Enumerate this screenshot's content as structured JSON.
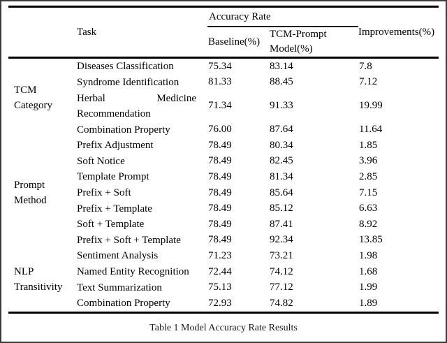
{
  "colors": {
    "background": "#ffffff",
    "text": "#000000",
    "rule": "#000000"
  },
  "table": {
    "header": {
      "task": "Task",
      "accuracy_group": "Accuracy Rate",
      "baseline": "Baseline(%)",
      "model_line1": "TCM-Prompt",
      "model_line2": "Model(%)",
      "improvements": "Improvements(%)"
    },
    "groups": [
      {
        "category_lines": [
          "TCM",
          "Category"
        ],
        "rows": [
          {
            "task": "Diseases Classification",
            "baseline": "75.34",
            "model": "83.14",
            "improvement": "7.8",
            "two_line": false
          },
          {
            "task": "Syndrome Identification",
            "baseline": "81.33",
            "model": "88.45",
            "improvement": "7.12",
            "two_line": false
          },
          {
            "task": "Herbal Medicine Recommendation",
            "baseline": "71.34",
            "model": "91.33",
            "improvement": "19.99",
            "two_line": true
          },
          {
            "task": "Combination Property",
            "baseline": "76.00",
            "model": "87.64",
            "improvement": "11.64",
            "two_line": false
          }
        ]
      },
      {
        "category_lines": [
          "Prompt",
          "Method"
        ],
        "rows": [
          {
            "task": "Prefix Adjustment",
            "baseline": "78.49",
            "model": "80.34",
            "improvement": "1.85",
            "two_line": false
          },
          {
            "task": "Soft Notice",
            "baseline": "78.49",
            "model": "82.45",
            "improvement": "3.96",
            "two_line": false
          },
          {
            "task": "Template Prompt",
            "baseline": "78.49",
            "model": "81.34",
            "improvement": "2.85",
            "two_line": false
          },
          {
            "task": "Prefix + Soft",
            "baseline": "78.49",
            "model": "85.64",
            "improvement": "7.15",
            "two_line": false
          },
          {
            "task": "Prefix + Template",
            "baseline": "78.49",
            "model": "85.12",
            "improvement": "6.63",
            "two_line": false
          },
          {
            "task": "Soft + Template",
            "baseline": "78.49",
            "model": "87.41",
            "improvement": "8.92",
            "two_line": false
          },
          {
            "task": "Prefix + Soft + Template",
            "baseline": "78.49",
            "model": "92.34",
            "improvement": "13.85",
            "two_line": false
          }
        ]
      },
      {
        "category_lines": [
          "NLP",
          "Transitivity"
        ],
        "rows": [
          {
            "task": "Sentiment Analysis",
            "baseline": "71.23",
            "model": "73.21",
            "improvement": "1.98",
            "two_line": false
          },
          {
            "task": "Named Entity Recognition",
            "baseline": "72.44",
            "model": "74.12",
            "improvement": "1.68",
            "two_line": false
          },
          {
            "task": "Text Summarization",
            "baseline": "75.13",
            "model": "77.12",
            "improvement": "1.99",
            "two_line": false
          },
          {
            "task": "Combination Property",
            "baseline": "72.93",
            "model": "74.82",
            "improvement": "1.89",
            "two_line": false
          }
        ]
      }
    ]
  },
  "caption": "Table 1 Model Accuracy Rate Results"
}
